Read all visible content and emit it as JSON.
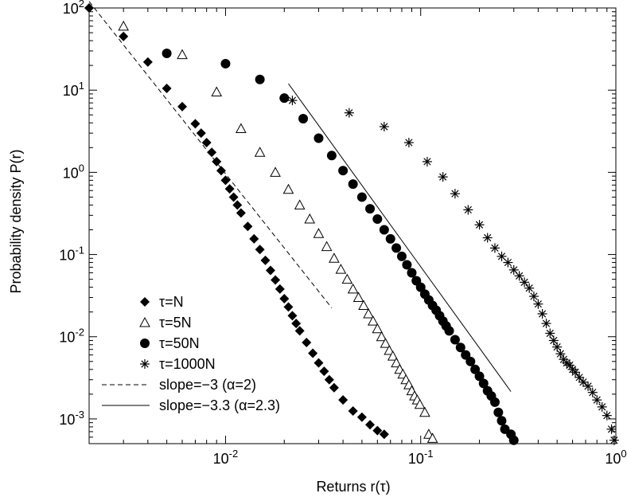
{
  "chart_data": {
    "type": "scatter",
    "xlabel": "Returns r(τ)",
    "ylabel": "Probability density P(r)",
    "xscale": "log",
    "yscale": "log",
    "xlim": [
      0.002,
      1.0
    ],
    "ylim": [
      0.0005,
      100
    ],
    "x_ticks": [
      {
        "value": 0.01,
        "base": "10",
        "exp": "-2"
      },
      {
        "value": 0.1,
        "base": "10",
        "exp": "-1"
      },
      {
        "value": 1.0,
        "base": "10",
        "exp": "0"
      }
    ],
    "y_ticks": [
      {
        "value": 0.001,
        "base": "10",
        "exp": "-3"
      },
      {
        "value": 0.01,
        "base": "10",
        "exp": "-2"
      },
      {
        "value": 0.1,
        "base": "10",
        "exp": "-1"
      },
      {
        "value": 1,
        "base": "10",
        "exp": "0"
      },
      {
        "value": 10,
        "base": "10",
        "exp": "1"
      },
      {
        "value": 100,
        "base": "10",
        "exp": "2"
      }
    ],
    "grid": false,
    "legend_position": "bottom-left",
    "series": [
      {
        "name": "τ=N",
        "marker": "diamond",
        "points": [
          [
            0.002,
            100
          ],
          [
            0.003,
            45
          ],
          [
            0.004,
            22
          ],
          [
            0.005,
            10.5
          ],
          [
            0.006,
            6.3
          ],
          [
            0.007,
            3.9
          ],
          [
            0.0075,
            3.0
          ],
          [
            0.008,
            2.3
          ],
          [
            0.0085,
            1.75
          ],
          [
            0.009,
            1.35
          ],
          [
            0.0095,
            1.05
          ],
          [
            0.01,
            0.8
          ],
          [
            0.0105,
            0.63
          ],
          [
            0.011,
            0.5
          ],
          [
            0.0115,
            0.4
          ],
          [
            0.012,
            0.32
          ],
          [
            0.013,
            0.22
          ],
          [
            0.014,
            0.155
          ],
          [
            0.015,
            0.115
          ],
          [
            0.016,
            0.085
          ],
          [
            0.017,
            0.064
          ],
          [
            0.018,
            0.049
          ],
          [
            0.019,
            0.038
          ],
          [
            0.02,
            0.029
          ],
          [
            0.021,
            0.023
          ],
          [
            0.022,
            0.018
          ],
          [
            0.023,
            0.0145
          ],
          [
            0.024,
            0.0118
          ],
          [
            0.026,
            0.0085
          ],
          [
            0.028,
            0.0063
          ],
          [
            0.03,
            0.0048
          ],
          [
            0.032,
            0.0038
          ],
          [
            0.034,
            0.003
          ],
          [
            0.036,
            0.0024
          ],
          [
            0.04,
            0.0017
          ],
          [
            0.045,
            0.00125
          ],
          [
            0.05,
            0.00105
          ],
          [
            0.055,
            0.00085
          ],
          [
            0.06,
            0.00072
          ],
          [
            0.065,
            0.00065
          ]
        ]
      },
      {
        "name": "τ=5N",
        "marker": "triangle",
        "points": [
          [
            0.003,
            60
          ],
          [
            0.006,
            27
          ],
          [
            0.009,
            9.5
          ],
          [
            0.012,
            3.4
          ],
          [
            0.015,
            1.75
          ],
          [
            0.018,
            1.0
          ],
          [
            0.021,
            0.62
          ],
          [
            0.024,
            0.4
          ],
          [
            0.027,
            0.27
          ],
          [
            0.03,
            0.18
          ],
          [
            0.033,
            0.125
          ],
          [
            0.036,
            0.09
          ],
          [
            0.039,
            0.066
          ],
          [
            0.042,
            0.05
          ],
          [
            0.045,
            0.038
          ],
          [
            0.048,
            0.03
          ],
          [
            0.051,
            0.024
          ],
          [
            0.054,
            0.019
          ],
          [
            0.057,
            0.0155
          ],
          [
            0.06,
            0.0125
          ],
          [
            0.063,
            0.01
          ],
          [
            0.066,
            0.0083
          ],
          [
            0.069,
            0.0068
          ],
          [
            0.072,
            0.0058
          ],
          [
            0.075,
            0.0048
          ],
          [
            0.078,
            0.004
          ],
          [
            0.081,
            0.0035
          ],
          [
            0.084,
            0.003
          ],
          [
            0.087,
            0.0026
          ],
          [
            0.09,
            0.0022
          ],
          [
            0.093,
            0.0019
          ],
          [
            0.096,
            0.0017
          ],
          [
            0.099,
            0.0015
          ],
          [
            0.105,
            0.0012
          ],
          [
            0.11,
            0.00065
          ],
          [
            0.115,
            0.00058
          ]
        ]
      },
      {
        "name": "τ=50N",
        "marker": "circle",
        "points": [
          [
            0.005,
            28
          ],
          [
            0.01,
            21
          ],
          [
            0.015,
            13.5
          ],
          [
            0.02,
            8.0
          ],
          [
            0.025,
            4.5
          ],
          [
            0.03,
            2.6
          ],
          [
            0.035,
            1.6
          ],
          [
            0.04,
            1.05
          ],
          [
            0.045,
            0.72
          ],
          [
            0.05,
            0.5
          ],
          [
            0.055,
            0.36
          ],
          [
            0.06,
            0.27
          ],
          [
            0.065,
            0.2
          ],
          [
            0.07,
            0.155
          ],
          [
            0.075,
            0.12
          ],
          [
            0.08,
            0.095
          ],
          [
            0.085,
            0.075
          ],
          [
            0.09,
            0.06
          ],
          [
            0.095,
            0.048
          ],
          [
            0.1,
            0.04
          ],
          [
            0.105,
            0.033
          ],
          [
            0.11,
            0.028
          ],
          [
            0.115,
            0.024
          ],
          [
            0.12,
            0.021
          ],
          [
            0.125,
            0.018
          ],
          [
            0.13,
            0.0155
          ],
          [
            0.135,
            0.0135
          ],
          [
            0.14,
            0.0118
          ],
          [
            0.15,
            0.0092
          ],
          [
            0.16,
            0.0074
          ],
          [
            0.17,
            0.006
          ],
          [
            0.18,
            0.005
          ],
          [
            0.19,
            0.004
          ],
          [
            0.2,
            0.0033
          ],
          [
            0.21,
            0.0027
          ],
          [
            0.22,
            0.0022
          ],
          [
            0.23,
            0.0019
          ],
          [
            0.24,
            0.0016
          ],
          [
            0.25,
            0.0012
          ],
          [
            0.26,
            0.00095
          ],
          [
            0.27,
            0.00075
          ],
          [
            0.29,
            0.00065
          ],
          [
            0.3,
            0.00055
          ]
        ]
      },
      {
        "name": "τ=1000N",
        "marker": "asterisk",
        "points": [
          [
            0.022,
            7.5
          ],
          [
            0.043,
            5.3
          ],
          [
            0.065,
            3.6
          ],
          [
            0.087,
            2.3
          ],
          [
            0.108,
            1.35
          ],
          [
            0.13,
            0.88
          ],
          [
            0.15,
            0.55
          ],
          [
            0.175,
            0.35
          ],
          [
            0.2,
            0.23
          ],
          [
            0.22,
            0.16
          ],
          [
            0.24,
            0.12
          ],
          [
            0.26,
            0.095
          ],
          [
            0.28,
            0.08
          ],
          [
            0.3,
            0.065
          ],
          [
            0.32,
            0.055
          ],
          [
            0.34,
            0.046
          ],
          [
            0.36,
            0.039
          ],
          [
            0.38,
            0.031
          ],
          [
            0.4,
            0.025
          ],
          [
            0.42,
            0.019
          ],
          [
            0.44,
            0.0145
          ],
          [
            0.46,
            0.011
          ],
          [
            0.48,
            0.009
          ],
          [
            0.5,
            0.0075
          ],
          [
            0.52,
            0.0062
          ],
          [
            0.54,
            0.0053
          ],
          [
            0.56,
            0.0048
          ],
          [
            0.58,
            0.0045
          ],
          [
            0.6,
            0.004
          ],
          [
            0.62,
            0.0037
          ],
          [
            0.65,
            0.0032
          ],
          [
            0.68,
            0.0028
          ],
          [
            0.72,
            0.0025
          ],
          [
            0.76,
            0.0021
          ],
          [
            0.8,
            0.0017
          ],
          [
            0.85,
            0.0014
          ],
          [
            0.9,
            0.0011
          ],
          [
            0.95,
            0.00075
          ],
          [
            0.98,
            0.00055
          ]
        ]
      }
    ],
    "reference_lines": [
      {
        "name": "slope=−3 (α=2)",
        "style": "dashed",
        "x": [
          0.002,
          0.035
        ],
        "y": [
          120,
          0.0224
        ]
      },
      {
        "name": "slope=−3.3 (α=2.3)",
        "style": "solid",
        "x": [
          0.021,
          0.29
        ],
        "y": [
          12.0,
          0.00215
        ]
      }
    ]
  }
}
